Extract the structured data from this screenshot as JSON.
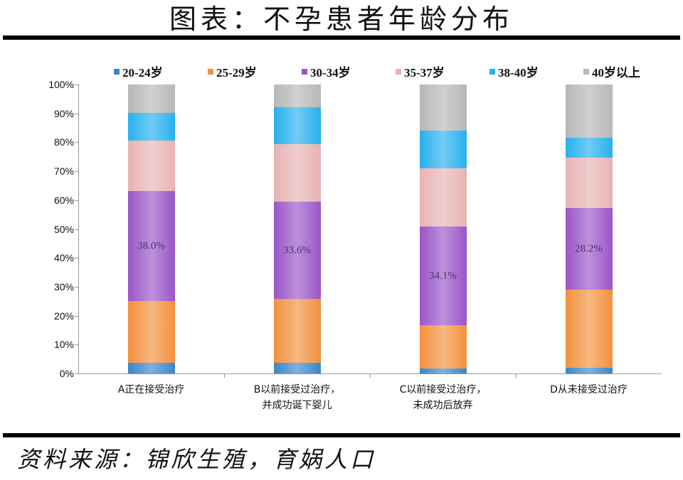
{
  "header": {
    "title": "图表：不孕患者年龄分布"
  },
  "footer": {
    "source": "资料来源：锦欣生殖，育娲人口"
  },
  "legend": [
    {
      "label": "20-24岁",
      "color": "#3a86c8"
    },
    {
      "label": "25-29岁",
      "color": "#f2913d"
    },
    {
      "label": "30-34岁",
      "color": "#9a55c8"
    },
    {
      "label": "35-37岁",
      "color": "#e8b3b3"
    },
    {
      "label": "38-40岁",
      "color": "#27b0ee"
    },
    {
      "label": "40岁以上",
      "color": "#b7b7b7"
    }
  ],
  "yaxis": {
    "ticks": [
      "0%",
      "10%",
      "20%",
      "30%",
      "40%",
      "50%",
      "60%",
      "70%",
      "80%",
      "90%",
      "100%"
    ]
  },
  "categories": [
    {
      "line1": "A正在接受治疗",
      "line2": ""
    },
    {
      "line1": "B以前接受过治疗，",
      "line2": "并成功诞下婴儿"
    },
    {
      "line1": "C以前接受过治疗，",
      "line2": "未成功后放弃"
    },
    {
      "line1": "D从未接受过治疗",
      "line2": ""
    }
  ],
  "bar_labels": [
    "38.0%",
    "33.6%",
    "34.1%",
    "28.2%"
  ],
  "chart_data": {
    "type": "bar",
    "stacked": true,
    "normalized": true,
    "title": "图表：不孕患者年龄分布",
    "xlabel": "",
    "ylabel": "",
    "ylim": [
      0,
      100
    ],
    "yticks": [
      "0%",
      "10%",
      "20%",
      "30%",
      "40%",
      "50%",
      "60%",
      "70%",
      "80%",
      "90%",
      "100%"
    ],
    "legend_position": "top",
    "grid": false,
    "categories": [
      "A正在接受治疗",
      "B以前接受过治疗，并成功诞下婴儿",
      "C以前接受过治疗，未成功后放弃",
      "D从未接受过治疗"
    ],
    "series": [
      {
        "name": "20-24岁",
        "color": "#3a86c8",
        "values": [
          3.7,
          3.7,
          1.7,
          2.0
        ]
      },
      {
        "name": "25-29岁",
        "color": "#f2913d",
        "values": [
          21.4,
          22.1,
          15.0,
          27.0
        ]
      },
      {
        "name": "30-34岁",
        "color": "#9a55c8",
        "values": [
          38.0,
          33.6,
          34.1,
          28.2
        ]
      },
      {
        "name": "35-37岁",
        "color": "#e8b3b3",
        "values": [
          17.5,
          20.0,
          20.2,
          17.5
        ]
      },
      {
        "name": "38-40岁",
        "color": "#27b0ee",
        "values": [
          9.6,
          12.7,
          13.0,
          6.9
        ]
      },
      {
        "name": "40岁以上",
        "color": "#b7b7b7",
        "values": [
          9.8,
          7.9,
          16.0,
          18.4
        ]
      }
    ],
    "annotations": [
      {
        "category": "A正在接受治疗",
        "series": "30-34岁",
        "text": "38.0%"
      },
      {
        "category": "B以前接受过治疗，并成功诞下婴儿",
        "series": "30-34岁",
        "text": "33.6%"
      },
      {
        "category": "C以前接受过治疗，未成功后放弃",
        "series": "30-34岁",
        "text": "34.1%"
      },
      {
        "category": "D从未接受过治疗",
        "series": "30-34岁",
        "text": "28.2%"
      }
    ],
    "source": "资料来源：锦欣生殖，育娲人口"
  }
}
